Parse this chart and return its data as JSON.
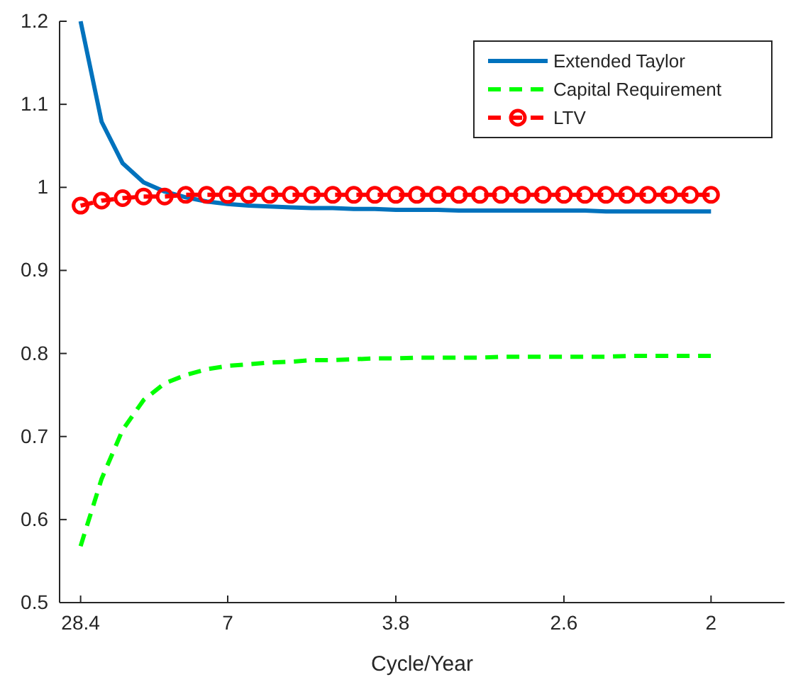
{
  "chart_data": {
    "type": "line",
    "xlabel": "Cycle/Year",
    "categories": [
      "28.4",
      null,
      null,
      null,
      null,
      null,
      null,
      "7",
      null,
      null,
      null,
      null,
      null,
      null,
      null,
      "3.8",
      null,
      null,
      null,
      null,
      null,
      null,
      null,
      "2.6",
      null,
      null,
      null,
      null,
      null,
      null,
      "2"
    ],
    "ylim": [
      0.5,
      1.2
    ],
    "yticks": [
      0.5,
      0.6,
      0.7,
      0.8,
      0.9,
      1,
      1.1,
      1.2
    ],
    "legend": "top right",
    "grid": false,
    "series": [
      {
        "name": "Extended Taylor",
        "color": "#0072bd",
        "line_style": "solid",
        "marker": "none",
        "values": [
          1.2,
          1.079,
          1.029,
          1.006,
          0.995,
          0.988,
          0.983,
          0.98,
          0.978,
          0.977,
          0.976,
          0.975,
          0.975,
          0.974,
          0.974,
          0.973,
          0.973,
          0.973,
          0.972,
          0.972,
          0.972,
          0.972,
          0.972,
          0.972,
          0.972,
          0.971,
          0.971,
          0.971,
          0.971,
          0.971,
          0.971
        ]
      },
      {
        "name": "Capital Requirement",
        "color": "#00ff00",
        "line_style": "dashed",
        "marker": "none",
        "values": [
          0.568,
          0.649,
          0.708,
          0.744,
          0.764,
          0.774,
          0.781,
          0.785,
          0.787,
          0.789,
          0.79,
          0.792,
          0.792,
          0.793,
          0.794,
          0.794,
          0.795,
          0.795,
          0.795,
          0.795,
          0.796,
          0.796,
          0.796,
          0.796,
          0.796,
          0.796,
          0.797,
          0.797,
          0.797,
          0.797,
          0.797
        ]
      },
      {
        "name": "LTV",
        "color": "#ff0000",
        "line_style": "dashed",
        "marker": "circle",
        "values": [
          0.978,
          0.984,
          0.987,
          0.989,
          0.989,
          0.991,
          0.991,
          0.991,
          0.991,
          0.991,
          0.991,
          0.991,
          0.991,
          0.991,
          0.991,
          0.991,
          0.991,
          0.991,
          0.991,
          0.991,
          0.991,
          0.991,
          0.991,
          0.991,
          0.991,
          0.991,
          0.991,
          0.991,
          0.991,
          0.991,
          0.991
        ]
      }
    ]
  }
}
